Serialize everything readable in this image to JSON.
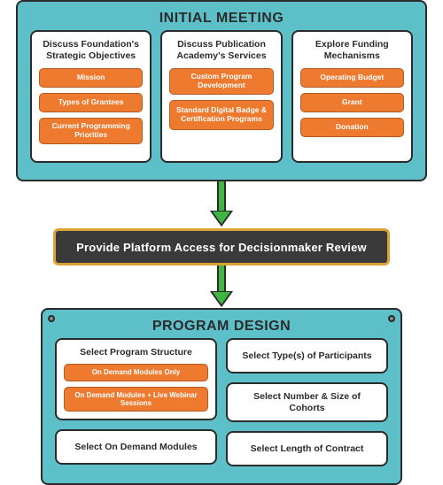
{
  "colors": {
    "panel_bg": "#5dc0c9",
    "panel_border": "#2b2b2b",
    "card_bg": "#ffffff",
    "pill_bg": "#ee7a2f",
    "pill_text": "#ffffff",
    "arrow_fill": "#3fb63f",
    "arrow_border": "#2b2b2b",
    "midbar_bg": "#3a3a3a",
    "midbar_border": "#d9a437",
    "midbar_text": "#ffffff",
    "screw": "#8a8a8a"
  },
  "panel1": {
    "title": "INITIAL MEETING",
    "title_fontsize": 16,
    "columns": [
      {
        "title": "Discuss Foundation's Strategic Objectives",
        "items": [
          "Mission",
          "Types of Grantees",
          "Current Programming Priorities"
        ]
      },
      {
        "title": "Discuss Publication Academy's Services",
        "items": [
          "Custom Program Development",
          "Standard Digital Badge & Certification Programs"
        ]
      },
      {
        "title": "Explore Funding Mechanisms",
        "items": [
          "Operating Budget",
          "Grant",
          "Donation"
        ]
      }
    ]
  },
  "midbar": {
    "text": "Provide Platform Access for Decisionmaker Review"
  },
  "panel2": {
    "title": "PROGRAM DESIGN",
    "title_fontsize": 16,
    "left_col": [
      {
        "title": "Select Program Structure",
        "items": [
          "On Demand Modules Only",
          "On Demand Modules + Live Webinar Sessions"
        ]
      },
      {
        "title": "Select On Demand Modules",
        "items": []
      }
    ],
    "right_col": [
      {
        "title": "Select Type(s) of Participants"
      },
      {
        "title": "Select Number & Size of Cohorts"
      },
      {
        "title": "Select Length of Contract"
      }
    ]
  }
}
